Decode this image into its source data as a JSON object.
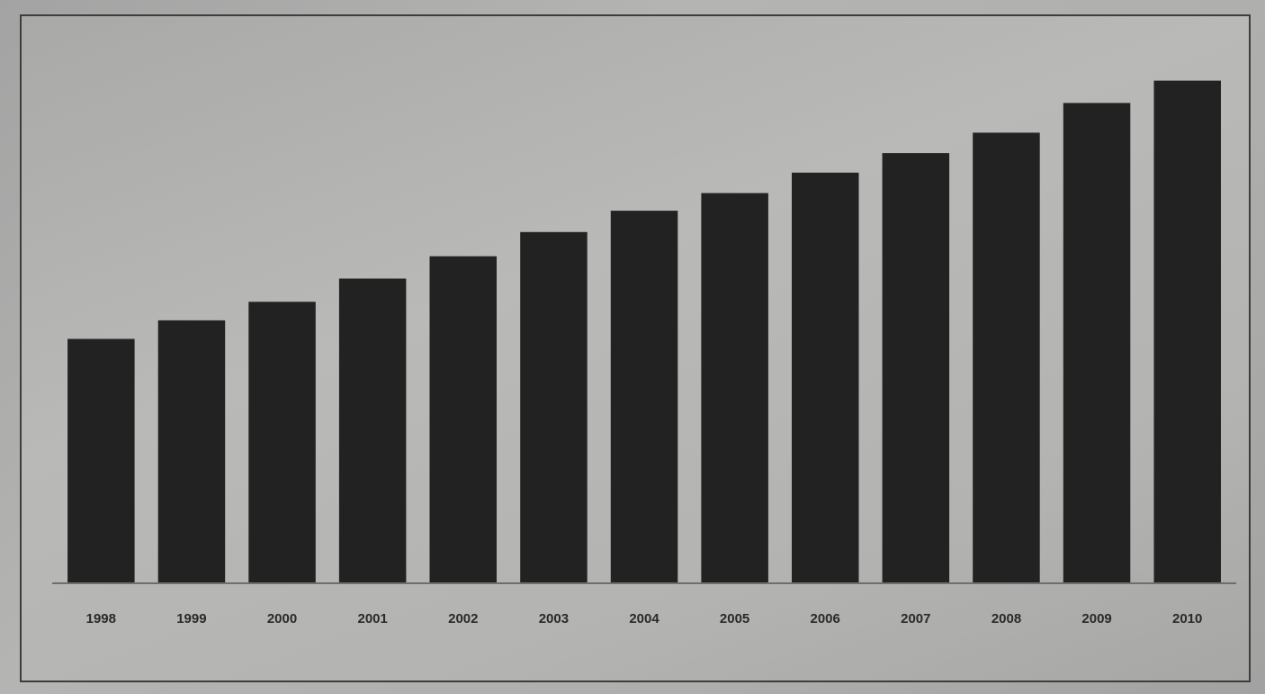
{
  "chart_data": {
    "type": "bar",
    "title": "",
    "xlabel": "",
    "ylabel": "",
    "categories": [
      "1998",
      "1999",
      "2000",
      "2001",
      "2002",
      "2003",
      "2004",
      "2005",
      "2006",
      "2007",
      "2008",
      "2009",
      "2010"
    ],
    "values": [
      263,
      283,
      303,
      328,
      352,
      378,
      401,
      420,
      442,
      463,
      485,
      517,
      541
    ],
    "ylim": [
      0,
      560
    ],
    "grid": false,
    "colors": {
      "bar": "#222223",
      "background": "#b4b4b2"
    }
  }
}
